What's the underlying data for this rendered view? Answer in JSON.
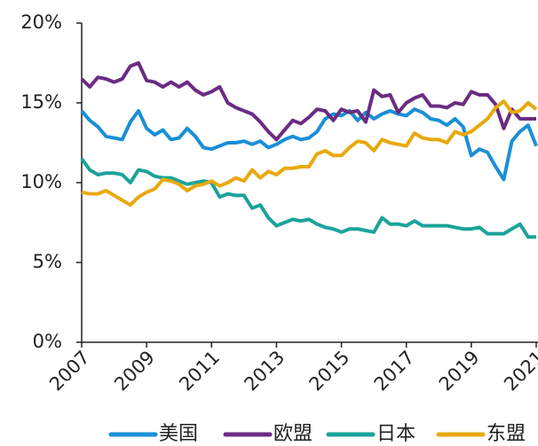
{
  "chart_data": {
    "type": "line",
    "x": [
      2007,
      2007.25,
      2007.5,
      2007.75,
      2008,
      2008.25,
      2008.5,
      2008.75,
      2009,
      2009.25,
      2009.5,
      2009.75,
      2010,
      2010.25,
      2010.5,
      2010.75,
      2011,
      2011.25,
      2011.5,
      2011.75,
      2012,
      2012.25,
      2012.5,
      2012.75,
      2013,
      2013.25,
      2013.5,
      2013.75,
      2014,
      2014.25,
      2014.5,
      2014.75,
      2015,
      2015.25,
      2015.5,
      2015.75,
      2016,
      2016.25,
      2016.5,
      2016.75,
      2017,
      2017.25,
      2017.5,
      2017.75,
      2018,
      2018.25,
      2018.5,
      2018.75,
      2019,
      2019.25,
      2019.5,
      2019.75,
      2020,
      2020.25,
      2020.5,
      2020.75,
      2021
    ],
    "series": [
      {
        "name": "美国",
        "color": "#1a8fd6",
        "values": [
          14.5,
          13.9,
          13.5,
          12.9,
          12.8,
          12.7,
          13.8,
          14.5,
          13.4,
          13.0,
          13.3,
          12.7,
          12.8,
          13.4,
          12.9,
          12.2,
          12.1,
          12.3,
          12.5,
          12.5,
          12.6,
          12.4,
          12.6,
          12.2,
          12.4,
          12.7,
          12.9,
          12.7,
          12.8,
          13.2,
          14.0,
          14.3,
          14.2,
          14.5,
          13.9,
          14.4,
          14.0,
          14.3,
          14.5,
          14.3,
          14.2,
          14.6,
          14.4,
          14.0,
          13.9,
          13.6,
          14.0,
          13.5,
          11.7,
          12.1,
          11.9,
          11.0,
          10.2,
          12.6,
          13.2,
          13.6,
          12.3
        ]
      },
      {
        "name": "欧盟",
        "color": "#6b2c82",
        "values": [
          16.5,
          16.0,
          16.6,
          16.5,
          16.3,
          16.5,
          17.3,
          17.5,
          16.4,
          16.3,
          16.0,
          16.3,
          16.0,
          16.3,
          15.8,
          15.5,
          15.7,
          16.0,
          15.0,
          14.7,
          14.5,
          14.3,
          13.8,
          13.2,
          12.7,
          13.3,
          13.9,
          13.7,
          14.1,
          14.6,
          14.5,
          13.9,
          14.6,
          14.4,
          14.5,
          13.8,
          15.8,
          15.4,
          15.5,
          14.4,
          15.0,
          15.3,
          15.5,
          14.8,
          14.8,
          14.7,
          15.0,
          14.9,
          15.7,
          15.5,
          15.5,
          14.9,
          13.4,
          14.6,
          14.0,
          14.0,
          14.0
        ]
      },
      {
        "name": "日本",
        "color": "#1aa39a",
        "values": [
          11.5,
          10.8,
          10.5,
          10.6,
          10.6,
          10.5,
          10.0,
          10.8,
          10.7,
          10.4,
          10.3,
          10.3,
          10.1,
          9.9,
          10.0,
          10.1,
          10.0,
          9.1,
          9.3,
          9.2,
          9.2,
          8.4,
          8.6,
          7.8,
          7.3,
          7.5,
          7.7,
          7.6,
          7.7,
          7.4,
          7.2,
          7.1,
          6.9,
          7.1,
          7.1,
          7.0,
          6.9,
          7.8,
          7.4,
          7.4,
          7.3,
          7.6,
          7.3,
          7.3,
          7.3,
          7.3,
          7.2,
          7.1,
          7.1,
          7.2,
          6.8,
          6.8,
          6.8,
          7.1,
          7.4,
          6.6,
          6.6
        ]
      },
      {
        "name": "东盟",
        "color": "#e8a90e",
        "values": [
          9.4,
          9.3,
          9.3,
          9.5,
          9.2,
          8.9,
          8.6,
          9.1,
          9.4,
          9.6,
          10.2,
          10.1,
          9.9,
          9.5,
          9.8,
          9.9,
          10.1,
          9.8,
          10.0,
          10.3,
          10.1,
          10.8,
          10.3,
          10.7,
          10.5,
          10.9,
          10.9,
          11.0,
          11.0,
          11.8,
          12.0,
          11.7,
          11.7,
          12.2,
          12.6,
          12.5,
          12.0,
          12.7,
          12.5,
          12.4,
          12.3,
          13.1,
          12.8,
          12.7,
          12.7,
          12.5,
          13.2,
          13.0,
          13.2,
          13.6,
          14.0,
          14.7,
          15.1,
          14.4,
          14.5,
          15.0,
          14.6
        ]
      }
    ],
    "xlim": [
      2007,
      2021
    ],
    "xticks": [
      2007,
      2009,
      2011,
      2013,
      2015,
      2017,
      2019,
      2021
    ],
    "ylim": [
      0,
      20
    ],
    "yticks": [
      {
        "value": 0,
        "label": "0%"
      },
      {
        "value": 5,
        "label": "5%"
      },
      {
        "value": 10,
        "label": "10%"
      },
      {
        "value": 15,
        "label": "15%"
      },
      {
        "value": 20,
        "label": "20%"
      }
    ],
    "legend": "bottom"
  }
}
